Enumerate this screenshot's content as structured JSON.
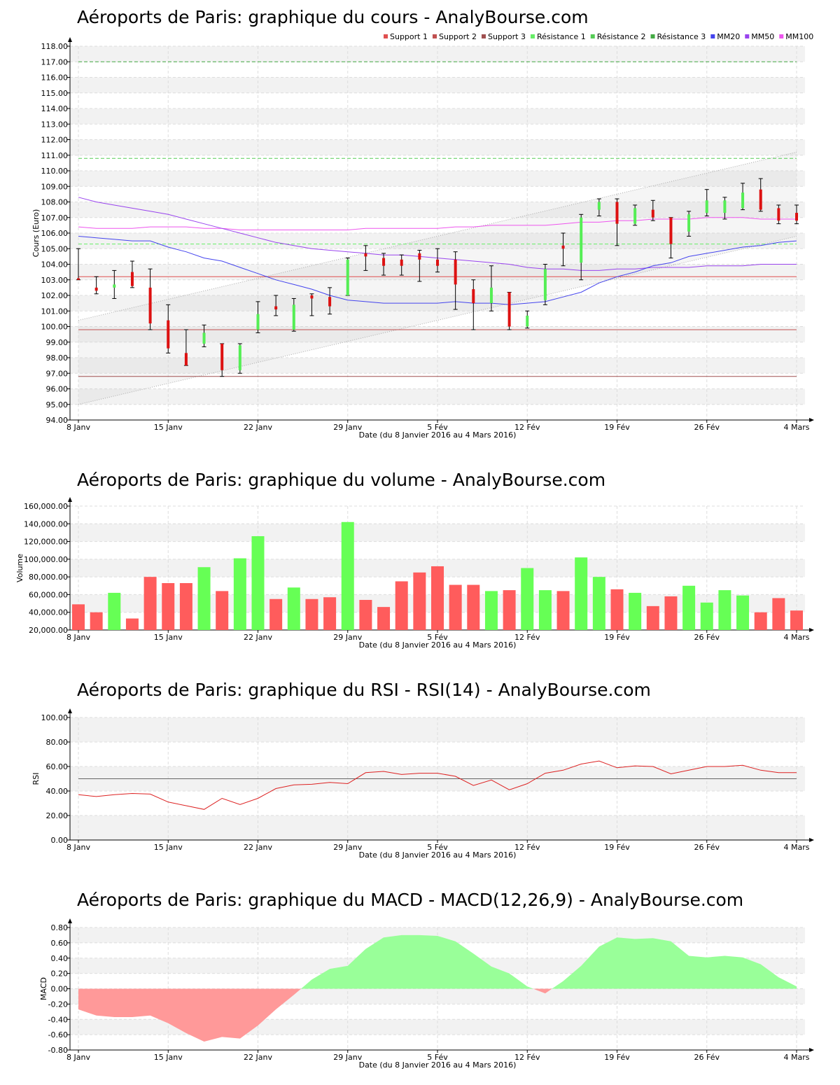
{
  "x_axis": {
    "labels": [
      "8 Janv",
      "15 Janv",
      "22 Janv",
      "29 Janv",
      "5 Fév",
      "12 Fév",
      "19 Fév",
      "26 Fév",
      "4 Mars"
    ],
    "title": "Date (du 8 Janvier 2016 au 4 Mars 2016)"
  },
  "panels": {
    "price_title": "Aéroports de Paris: graphique du cours - AnalyBourse.com",
    "volume_title": "Aéroports de Paris: graphique du volume - AnalyBourse.com",
    "rsi_title": "Aéroports de Paris: graphique du RSI - RSI(14) - AnalyBourse.com",
    "macd_title": "Aéroports de Paris: graphique du MACD - MACD(12,26,9) - AnalyBourse.com"
  },
  "colors": {
    "up": "#55ee55",
    "down": "#dd1111",
    "vol_up": "#66ff55",
    "vol_down": "#ff5c5c",
    "mm20": "#4444ee",
    "mm50": "#9944ee",
    "mm100": "#ee55ee"
  },
  "chart_data": [
    {
      "type": "candlestick",
      "ylabel": "Cours (Euro)",
      "ylim": [
        94,
        118
      ],
      "yticks": [
        "94.00",
        "95.00",
        "96.00",
        "97.00",
        "98.00",
        "99.00",
        "100.00",
        "101.00",
        "102.00",
        "103.00",
        "104.00",
        "105.00",
        "106.00",
        "107.00",
        "108.00",
        "109.00",
        "110.00",
        "111.00",
        "112.00",
        "113.00",
        "114.00",
        "115.00",
        "116.00",
        "117.00",
        "118.00"
      ],
      "legend": [
        "Support 1",
        "Support 2",
        "Support 3",
        "Résistance 1",
        "Résistance 2",
        "Résistance 3",
        "MM20",
        "MM50",
        "MM100"
      ],
      "legend_colors": [
        "#e05050",
        "#c05050",
        "#a05050",
        "#66ee66",
        "#55cc55",
        "#44aa44",
        "#4444ee",
        "#9944ee",
        "#ee55ee"
      ],
      "supports": [
        103.2,
        99.8,
        96.8
      ],
      "resistances": [
        105.3,
        110.8,
        117.0
      ],
      "trend_channel": {
        "upper": [
          100.4,
          111.2
        ],
        "lower": [
          95.0,
          105.8
        ]
      },
      "candles": [
        {
          "o": 103.1,
          "h": 105.0,
          "l": 103.0,
          "c": 103.0
        },
        {
          "o": 102.5,
          "h": 103.2,
          "l": 102.1,
          "c": 102.3
        },
        {
          "o": 102.5,
          "h": 103.6,
          "l": 101.8,
          "c": 102.7
        },
        {
          "o": 103.5,
          "h": 104.2,
          "l": 102.5,
          "c": 102.6
        },
        {
          "o": 102.5,
          "h": 103.7,
          "l": 99.8,
          "c": 100.2
        },
        {
          "o": 100.4,
          "h": 101.4,
          "l": 98.3,
          "c": 98.6
        },
        {
          "o": 98.3,
          "h": 99.8,
          "l": 97.5,
          "c": 97.5
        },
        {
          "o": 98.9,
          "h": 100.1,
          "l": 98.7,
          "c": 99.6
        },
        {
          "o": 98.9,
          "h": 98.9,
          "l": 96.8,
          "c": 97.2
        },
        {
          "o": 97.2,
          "h": 98.9,
          "l": 97.0,
          "c": 98.8
        },
        {
          "o": 99.8,
          "h": 101.6,
          "l": 99.6,
          "c": 100.8
        },
        {
          "o": 101.3,
          "h": 102.0,
          "l": 100.7,
          "c": 101.1
        },
        {
          "o": 99.8,
          "h": 101.8,
          "l": 99.7,
          "c": 101.4
        },
        {
          "o": 102.0,
          "h": 102.1,
          "l": 100.7,
          "c": 101.8
        },
        {
          "o": 101.9,
          "h": 102.5,
          "l": 100.8,
          "c": 101.3
        },
        {
          "o": 102.0,
          "h": 104.4,
          "l": 102.0,
          "c": 104.3
        },
        {
          "o": 104.7,
          "h": 105.2,
          "l": 103.6,
          "c": 104.5
        },
        {
          "o": 104.4,
          "h": 104.7,
          "l": 103.3,
          "c": 103.9
        },
        {
          "o": 104.3,
          "h": 104.6,
          "l": 103.3,
          "c": 103.9
        },
        {
          "o": 104.7,
          "h": 104.9,
          "l": 102.9,
          "c": 104.3
        },
        {
          "o": 104.3,
          "h": 105.0,
          "l": 103.5,
          "c": 103.9
        },
        {
          "o": 104.3,
          "h": 104.8,
          "l": 101.1,
          "c": 102.7
        },
        {
          "o": 102.4,
          "h": 103.0,
          "l": 99.8,
          "c": 101.5
        },
        {
          "o": 101.5,
          "h": 103.9,
          "l": 101.0,
          "c": 102.5
        },
        {
          "o": 102.2,
          "h": 102.2,
          "l": 99.8,
          "c": 100.0
        },
        {
          "o": 100.0,
          "h": 101.0,
          "l": 99.9,
          "c": 100.7
        },
        {
          "o": 101.7,
          "h": 104.0,
          "l": 101.4,
          "c": 103.7
        },
        {
          "o": 105.2,
          "h": 106.0,
          "l": 103.9,
          "c": 105.0
        },
        {
          "o": 104.1,
          "h": 107.2,
          "l": 103.0,
          "c": 107.0
        },
        {
          "o": 107.5,
          "h": 108.2,
          "l": 107.1,
          "c": 108.0
        },
        {
          "o": 108.0,
          "h": 108.2,
          "l": 105.2,
          "c": 106.6
        },
        {
          "o": 106.6,
          "h": 107.8,
          "l": 106.5,
          "c": 107.6
        },
        {
          "o": 107.5,
          "h": 108.1,
          "l": 106.8,
          "c": 107.0
        },
        {
          "o": 107.0,
          "h": 107.0,
          "l": 104.4,
          "c": 105.3
        },
        {
          "o": 106.1,
          "h": 107.4,
          "l": 105.8,
          "c": 107.2
        },
        {
          "o": 107.3,
          "h": 108.8,
          "l": 107.1,
          "c": 108.1
        },
        {
          "o": 107.3,
          "h": 108.3,
          "l": 106.9,
          "c": 108.1
        },
        {
          "o": 107.6,
          "h": 109.2,
          "l": 107.5,
          "c": 108.6
        },
        {
          "o": 108.8,
          "h": 109.5,
          "l": 107.4,
          "c": 107.5
        },
        {
          "o": 107.6,
          "h": 107.8,
          "l": 106.6,
          "c": 106.8
        },
        {
          "o": 107.3,
          "h": 107.8,
          "l": 106.6,
          "c": 106.8
        }
      ],
      "mm20": [
        105.8,
        105.7,
        105.6,
        105.5,
        105.5,
        105.1,
        104.8,
        104.4,
        104.2,
        103.8,
        103.4,
        103.0,
        102.7,
        102.4,
        102.0,
        101.7,
        101.6,
        101.5,
        101.5,
        101.5,
        101.5,
        101.6,
        101.5,
        101.5,
        101.4,
        101.5,
        101.6,
        101.9,
        102.2,
        102.8,
        103.2,
        103.5,
        103.9,
        104.1,
        104.5,
        104.7,
        104.9,
        105.1,
        105.2,
        105.4,
        105.5
      ],
      "mm50": [
        108.3,
        108.0,
        107.8,
        107.6,
        107.4,
        107.2,
        106.9,
        106.6,
        106.3,
        106.0,
        105.7,
        105.4,
        105.2,
        105.0,
        104.9,
        104.8,
        104.7,
        104.6,
        104.6,
        104.5,
        104.4,
        104.3,
        104.2,
        104.1,
        104.0,
        103.8,
        103.7,
        103.7,
        103.6,
        103.6,
        103.7,
        103.7,
        103.8,
        103.8,
        103.8,
        103.9,
        103.9,
        103.9,
        104.0,
        104.0,
        104.0
      ],
      "mm100": [
        106.4,
        106.3,
        106.3,
        106.3,
        106.4,
        106.4,
        106.4,
        106.3,
        106.3,
        106.2,
        106.2,
        106.2,
        106.2,
        106.2,
        106.2,
        106.2,
        106.3,
        106.3,
        106.3,
        106.3,
        106.3,
        106.4,
        106.4,
        106.5,
        106.5,
        106.5,
        106.5,
        106.6,
        106.7,
        106.7,
        106.8,
        106.8,
        106.9,
        106.9,
        106.9,
        107.0,
        107.0,
        107.0,
        106.9,
        106.9,
        106.9
      ]
    },
    {
      "type": "bar",
      "ylabel": "Volume",
      "ylim": [
        20000,
        160000
      ],
      "yticks": [
        "20,000.00",
        "40,000.00",
        "60,000.00",
        "80,000.00",
        "100,000.00",
        "120,000.00",
        "140,000.00",
        "160,000.00"
      ],
      "values": [
        49000,
        40000,
        62000,
        33000,
        80000,
        73000,
        73000,
        91000,
        64000,
        101000,
        126000,
        55000,
        68000,
        55000,
        57000,
        142000,
        54000,
        46000,
        75000,
        85000,
        92000,
        71000,
        71000,
        64000,
        65000,
        90000,
        65000,
        64000,
        102000,
        80000,
        66000,
        62000,
        47000,
        58000,
        70000,
        51000,
        65000,
        59000,
        40000,
        56000,
        42000
      ],
      "up": [
        false,
        false,
        true,
        false,
        false,
        false,
        false,
        true,
        false,
        true,
        true,
        false,
        true,
        false,
        false,
        true,
        false,
        false,
        false,
        false,
        false,
        false,
        false,
        true,
        false,
        true,
        true,
        false,
        true,
        true,
        false,
        true,
        false,
        false,
        true,
        true,
        true,
        true,
        false,
        false,
        false
      ]
    },
    {
      "type": "line",
      "ylabel": "RSI",
      "ylim": [
        0,
        100
      ],
      "yticks": [
        "0.00",
        "20.00",
        "40.00",
        "60.00",
        "80.00",
        "100.00"
      ],
      "reference": 50,
      "values": [
        37,
        35.5,
        37,
        38,
        37.5,
        31,
        28,
        25,
        34,
        29,
        34,
        42,
        45,
        45.5,
        47,
        46,
        55,
        56,
        53.5,
        54.5,
        54.5,
        52,
        44.5,
        49,
        41,
        46,
        54.5,
        57,
        62,
        64.5,
        59,
        60.5,
        60,
        54,
        57,
        60,
        60,
        61,
        57,
        55,
        55
      ]
    },
    {
      "type": "area",
      "ylabel": "MACD",
      "ylim": [
        -0.8,
        0.8
      ],
      "yticks": [
        "-0.80",
        "-0.60",
        "-0.40",
        "-0.20",
        "0.00",
        "0.20",
        "0.40",
        "0.60",
        "0.80"
      ],
      "values": [
        -0.27,
        -0.35,
        -0.37,
        -0.37,
        -0.35,
        -0.45,
        -0.58,
        -0.69,
        -0.63,
        -0.65,
        -0.48,
        -0.27,
        -0.08,
        0.12,
        0.26,
        0.3,
        0.52,
        0.67,
        0.7,
        0.7,
        0.69,
        0.62,
        0.46,
        0.29,
        0.2,
        0.03,
        -0.06,
        0.1,
        0.3,
        0.55,
        0.67,
        0.65,
        0.66,
        0.62,
        0.43,
        0.41,
        0.43,
        0.41,
        0.32,
        0.15,
        0.03
      ]
    }
  ]
}
